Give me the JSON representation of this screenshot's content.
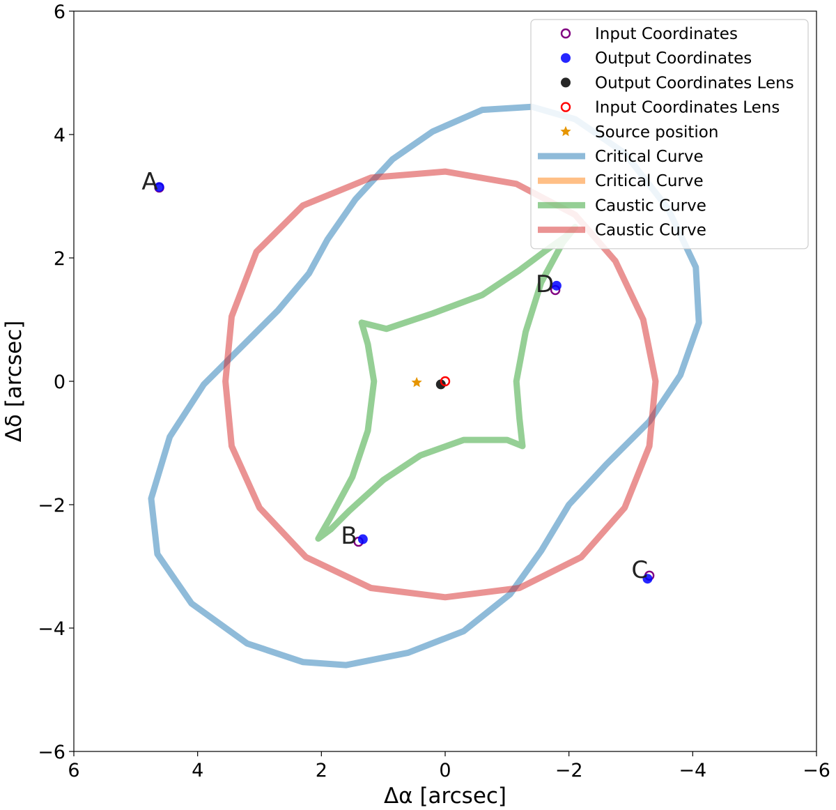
{
  "chart_data": {
    "type": "scatter",
    "title": "",
    "xlabel": "Δα   [arcsec]",
    "ylabel": "Δδ   [arcsec]",
    "xlim": [
      6,
      -6
    ],
    "ylim": [
      -6,
      6
    ],
    "xticks": [
      6,
      4,
      2,
      0,
      -2,
      -4,
      -6
    ],
    "yticks": [
      -6,
      -4,
      -2,
      0,
      2,
      4,
      6
    ],
    "xtick_labels": [
      "6",
      "4",
      "2",
      "0",
      "−2",
      "−4",
      "−6"
    ],
    "ytick_labels": [
      "−6",
      "−4",
      "−2",
      "0",
      "2",
      "4",
      "6"
    ],
    "grid": false,
    "legend_position": "top-right",
    "curves": [
      {
        "name": "Critical Curve",
        "color": "#1f77b4",
        "opacity": 0.5,
        "points": [
          [
            1.6,
            -4.6
          ],
          [
            0.6,
            -4.4
          ],
          [
            -0.3,
            -4.05
          ],
          [
            -1.05,
            -3.45
          ],
          [
            -1.55,
            -2.75
          ],
          [
            -2.0,
            -2.0
          ],
          [
            -2.6,
            -1.35
          ],
          [
            -3.3,
            -0.65
          ],
          [
            -3.8,
            0.1
          ],
          [
            -4.1,
            0.95
          ],
          [
            -4.05,
            1.85
          ],
          [
            -3.6,
            2.8
          ],
          [
            -2.9,
            3.7
          ],
          [
            -2.1,
            4.25
          ],
          [
            -1.4,
            4.45
          ],
          [
            -0.6,
            4.4
          ],
          [
            0.2,
            4.05
          ],
          [
            0.85,
            3.6
          ],
          [
            1.45,
            2.95
          ],
          [
            1.9,
            2.3
          ],
          [
            2.2,
            1.75
          ],
          [
            2.7,
            1.15
          ],
          [
            3.25,
            0.6
          ],
          [
            3.9,
            -0.05
          ],
          [
            4.45,
            -0.9
          ],
          [
            4.75,
            -1.9
          ],
          [
            4.65,
            -2.8
          ],
          [
            4.1,
            -3.6
          ],
          [
            3.2,
            -4.25
          ],
          [
            2.3,
            -4.55
          ],
          [
            1.6,
            -4.6
          ]
        ]
      },
      {
        "name": "Critical Curve",
        "color": "#ff7f0e",
        "opacity": 0.5,
        "points": []
      },
      {
        "name": "Caustic Curve",
        "color": "#2ca02c",
        "opacity": 0.5,
        "points": [
          [
            1.35,
            0.95
          ],
          [
            0.95,
            0.85
          ],
          [
            0.2,
            1.1
          ],
          [
            -0.6,
            1.4
          ],
          [
            -1.2,
            1.8
          ],
          [
            -1.6,
            2.1
          ],
          [
            -1.95,
            2.35
          ],
          [
            -2.1,
            2.5
          ],
          [
            -1.9,
            2.25
          ],
          [
            -1.55,
            1.6
          ],
          [
            -1.3,
            0.8
          ],
          [
            -1.15,
            0.0
          ],
          [
            -1.2,
            -0.6
          ],
          [
            -1.25,
            -1.05
          ],
          [
            -1.0,
            -0.95
          ],
          [
            -0.3,
            -0.95
          ],
          [
            0.4,
            -1.2
          ],
          [
            1.0,
            -1.6
          ],
          [
            1.55,
            -2.1
          ],
          [
            1.85,
            -2.4
          ],
          [
            2.05,
            -2.55
          ],
          [
            1.85,
            -2.2
          ],
          [
            1.5,
            -1.55
          ],
          [
            1.25,
            -0.8
          ],
          [
            1.15,
            0.0
          ],
          [
            1.25,
            0.6
          ],
          [
            1.35,
            0.95
          ]
        ]
      },
      {
        "name": "Caustic Curve",
        "color": "#d62728",
        "opacity": 0.5,
        "points": [
          [
            3.55,
            0.0
          ],
          [
            3.45,
            1.05
          ],
          [
            3.05,
            2.1
          ],
          [
            2.3,
            2.85
          ],
          [
            1.2,
            3.3
          ],
          [
            0.0,
            3.4
          ],
          [
            -1.15,
            3.2
          ],
          [
            -2.1,
            2.7
          ],
          [
            -2.75,
            1.95
          ],
          [
            -3.2,
            1.0
          ],
          [
            -3.4,
            0.0
          ],
          [
            -3.3,
            -1.05
          ],
          [
            -2.9,
            -2.05
          ],
          [
            -2.2,
            -2.85
          ],
          [
            -1.2,
            -3.35
          ],
          [
            0.0,
            -3.5
          ],
          [
            1.2,
            -3.35
          ],
          [
            2.25,
            -2.85
          ],
          [
            3.0,
            -2.05
          ],
          [
            3.45,
            -1.05
          ],
          [
            3.55,
            0.0
          ]
        ]
      }
    ],
    "scatter_series": [
      {
        "name": "Input Coordinates",
        "marker": "open-circle",
        "color": "#800080",
        "points": [
          [
            4.62,
            3.14
          ],
          [
            1.4,
            -2.6
          ],
          [
            -3.3,
            -3.15
          ],
          [
            -1.78,
            1.48
          ]
        ]
      },
      {
        "name": "Output Coordinates",
        "marker": "filled-circle",
        "color": "#0000ff",
        "points": [
          [
            4.62,
            3.15
          ],
          [
            1.33,
            -2.56
          ],
          [
            -3.27,
            -3.2
          ],
          [
            -1.8,
            1.55
          ]
        ]
      },
      {
        "name": "Output Coordinates Lens",
        "marker": "filled-circle",
        "color": "#000000",
        "points": [
          [
            0.07,
            -0.05
          ]
        ]
      },
      {
        "name": "Input Coordinates Lens",
        "marker": "open-circle",
        "color": "#ff0000",
        "points": [
          [
            0.0,
            0.0
          ]
        ]
      },
      {
        "name": "Source position",
        "marker": "star",
        "color": "#e69500",
        "points": [
          [
            0.46,
            -0.02
          ]
        ]
      }
    ],
    "point_labels": [
      {
        "text": "A",
        "x": 4.62,
        "y": 3.14
      },
      {
        "text": "B",
        "x": 1.4,
        "y": -2.6
      },
      {
        "text": "C",
        "x": -3.3,
        "y": -3.15
      },
      {
        "text": "D",
        "x": -1.78,
        "y": 1.48
      }
    ],
    "legend": [
      {
        "label": "Input Coordinates",
        "kind": "open-circle",
        "color": "#800080"
      },
      {
        "label": "Output Coordinates",
        "kind": "filled-circle",
        "color": "#0000ff"
      },
      {
        "label": "Output Coordinates Lens",
        "kind": "filled-circle",
        "color": "#000000"
      },
      {
        "label": "Input Coordinates Lens",
        "kind": "open-circle",
        "color": "#ff0000"
      },
      {
        "label": "Source position",
        "kind": "star",
        "color": "#e69500"
      },
      {
        "label": "Critical Curve",
        "kind": "line",
        "color": "#1f77b4"
      },
      {
        "label": "Critical Curve",
        "kind": "line",
        "color": "#ff7f0e"
      },
      {
        "label": "Caustic Curve",
        "kind": "line",
        "color": "#2ca02c"
      },
      {
        "label": "Caustic Curve",
        "kind": "line",
        "color": "#d62728"
      }
    ]
  }
}
